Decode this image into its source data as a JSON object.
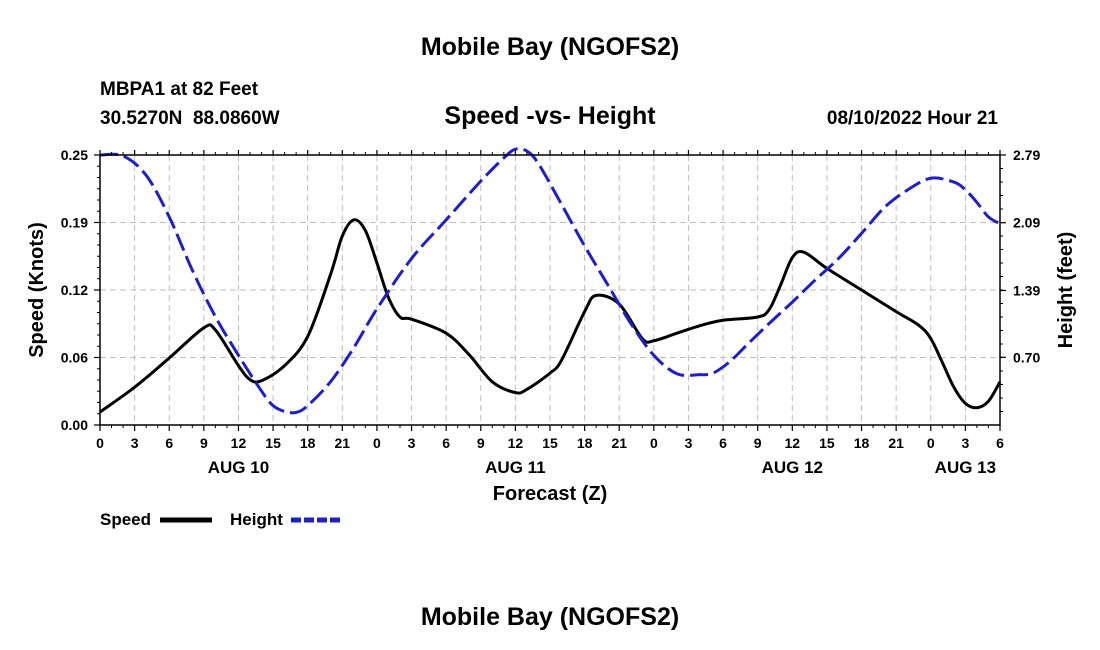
{
  "chart_data": {
    "type": "line",
    "title": "Mobile Bay (NGOFS2)",
    "subtitle": "Speed -vs- Height",
    "station": "MBPA1 at 82 Feet",
    "coordinates": "30.5270N  88.0860W",
    "datetime": "08/10/2022 Hour 21",
    "footer_title": "Mobile Bay (NGOFS2)",
    "xlabel": "Forecast (Z)",
    "ylabel": "Speed (Knots)",
    "ylabel_right": "Height (feet)",
    "xlim": [
      0,
      78
    ],
    "ylim": [
      0,
      0.25
    ],
    "ylim_right": [
      0,
      2.79
    ],
    "x_tick_labels": [
      "0",
      "3",
      "6",
      "9",
      "12",
      "15",
      "18",
      "21",
      "0",
      "3",
      "6",
      "9",
      "12",
      "15",
      "18",
      "21",
      "0",
      "3",
      "6",
      "9",
      "12",
      "15",
      "18",
      "21",
      "0",
      "3",
      "6"
    ],
    "x_date_labels": [
      {
        "label": "AUG 10",
        "hour": 12
      },
      {
        "label": "AUG 11",
        "hour": 36
      },
      {
        "label": "AUG 12",
        "hour": 60
      },
      {
        "label": "AUG 13",
        "hour": 75
      }
    ],
    "y_tick_labels": [
      "0.00",
      "0.06",
      "0.12",
      "0.19",
      "0.25"
    ],
    "y_right_tick_labels": [
      "0.70",
      "1.39",
      "2.09",
      "2.79"
    ],
    "grid": true,
    "legend": {
      "position": "bottom-left",
      "entries": [
        "Speed",
        "Height"
      ]
    },
    "series": [
      {
        "name": "Speed",
        "color": "#000000",
        "style": "solid",
        "axis": "left",
        "x": [
          0,
          3,
          6,
          9,
          10,
          12,
          13,
          14,
          16,
          18,
          20,
          21,
          22,
          23,
          24,
          25,
          26,
          27,
          30,
          32,
          34,
          36,
          37,
          39,
          40,
          42,
          43,
          45,
          47,
          48,
          50,
          52,
          54,
          57,
          58,
          59,
          60,
          61,
          63,
          66,
          69,
          71,
          72,
          73,
          74,
          75,
          76,
          77,
          78
        ],
        "values": [
          0.012,
          0.035,
          0.062,
          0.09,
          0.088,
          0.055,
          0.042,
          0.041,
          0.055,
          0.082,
          0.14,
          0.175,
          0.19,
          0.18,
          0.15,
          0.118,
          0.1,
          0.098,
          0.085,
          0.065,
          0.04,
          0.03,
          0.033,
          0.048,
          0.06,
          0.105,
          0.12,
          0.112,
          0.08,
          0.078,
          0.085,
          0.092,
          0.097,
          0.1,
          0.107,
          0.13,
          0.155,
          0.16,
          0.145,
          0.125,
          0.105,
          0.092,
          0.08,
          0.058,
          0.035,
          0.02,
          0.016,
          0.022,
          0.04
        ]
      },
      {
        "name": "Height",
        "color": "#1f1fc8",
        "style": "dashed",
        "axis": "right",
        "x": [
          0,
          2,
          4,
          6,
          8,
          10,
          12,
          14,
          15,
          16,
          17,
          18,
          20,
          22,
          24,
          27,
          30,
          33,
          35,
          36,
          37,
          38,
          40,
          42,
          44,
          46,
          48,
          50,
          52,
          53,
          54,
          55,
          56,
          58,
          60,
          62,
          64,
          66,
          68,
          70,
          72,
          74,
          75,
          76,
          77,
          78
        ],
        "values": [
          2.79,
          2.78,
          2.58,
          2.15,
          1.6,
          1.12,
          0.72,
          0.35,
          0.2,
          0.14,
          0.13,
          0.2,
          0.45,
          0.8,
          1.2,
          1.72,
          2.12,
          2.52,
          2.76,
          2.85,
          2.83,
          2.7,
          2.28,
          1.85,
          1.45,
          1.05,
          0.72,
          0.53,
          0.52,
          0.53,
          0.6,
          0.7,
          0.82,
          1.05,
          1.27,
          1.5,
          1.72,
          1.98,
          2.25,
          2.43,
          2.55,
          2.51,
          2.43,
          2.3,
          2.15,
          2.08
        ]
      }
    ]
  }
}
